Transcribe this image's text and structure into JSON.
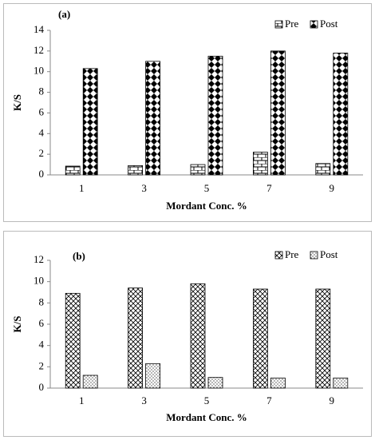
{
  "chart_data": [
    {
      "type": "bar",
      "title": "(a)",
      "x_label": "Mordant Conc. %",
      "y_label": "K/S",
      "categories": [
        1,
        3,
        5,
        7,
        9
      ],
      "series": [
        {
          "name": "Pre",
          "color": "#000000",
          "pattern": "brick",
          "values": [
            0.85,
            0.9,
            1.0,
            2.2,
            1.1
          ]
        },
        {
          "name": "Post",
          "color": "#000000",
          "pattern": "diamond",
          "values": [
            10.3,
            11.0,
            11.5,
            12.0,
            11.8
          ]
        }
      ],
      "ylim": [
        0,
        14
      ],
      "yticks": [
        0,
        2,
        4,
        6,
        8,
        10,
        12,
        14
      ],
      "grid": false,
      "legend": "top-right"
    },
    {
      "type": "bar",
      "title": "(b)",
      "x_label": "Mordant Conc. %",
      "y_label": "K/S",
      "categories": [
        1,
        3,
        5,
        7,
        9
      ],
      "series": [
        {
          "name": "Pre",
          "color": "#000000",
          "pattern": "crosshatch",
          "values": [
            8.9,
            9.4,
            9.8,
            9.3,
            9.3
          ]
        },
        {
          "name": "Post",
          "color": "#000000",
          "pattern": "dots",
          "values": [
            1.2,
            2.3,
            1.0,
            0.95,
            0.95
          ]
        }
      ],
      "ylim": [
        0,
        12
      ],
      "yticks": [
        0,
        2,
        4,
        6,
        8,
        10,
        12
      ],
      "grid": false,
      "legend": "top-right"
    }
  ]
}
